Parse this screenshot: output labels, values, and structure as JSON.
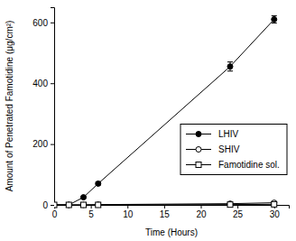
{
  "chart_data": {
    "type": "line",
    "x_label": "Time (Hours)",
    "y_label": "Amount of Penetrated Famotidine (μg/cm²)",
    "x": [
      0,
      2,
      4,
      6,
      24,
      30
    ],
    "series": [
      {
        "name": "LHIV",
        "color": "#000000",
        "marker": "filled-circle",
        "values": [
          0,
          0,
          25,
          70,
          455,
          610
        ],
        "errors": [
          0,
          0,
          3,
          5,
          15,
          12
        ]
      },
      {
        "name": "SHIV",
        "color": "#000000",
        "marker": "open-circle",
        "values": [
          0,
          0,
          0,
          1,
          4,
          7
        ],
        "errors": [
          0,
          0,
          0,
          0,
          1,
          1
        ]
      },
      {
        "name": "Famotidine sol.",
        "color": "#000000",
        "marker": "open-square",
        "values": [
          0,
          0,
          0,
          0,
          1,
          2
        ],
        "errors": [
          0,
          0,
          0,
          0,
          0,
          0
        ]
      }
    ],
    "xlim": [
      0,
      32
    ],
    "xticks": [
      0,
      5,
      10,
      15,
      20,
      25,
      30
    ],
    "ylim": [
      0,
      650
    ],
    "yticks": [
      0,
      200,
      400,
      600
    ],
    "grid": false,
    "legend": "right"
  }
}
